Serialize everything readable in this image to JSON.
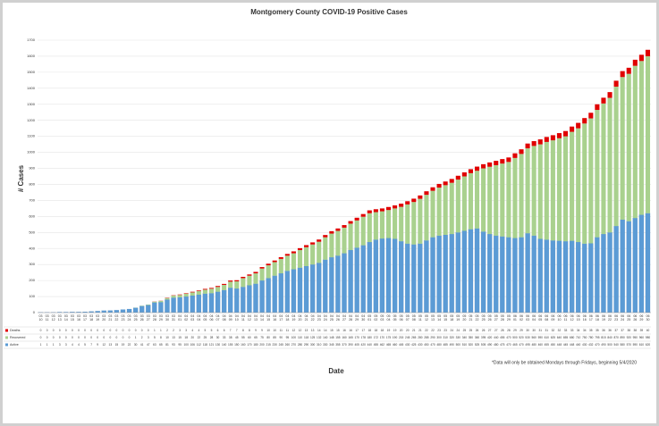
{
  "chart_data": {
    "type": "bar",
    "stacked": true,
    "title": "Montgomery County COVID-19 Positive Cases",
    "y_label": "# Cases",
    "x_label": "Date",
    "note": "*Data will only be obtained Mondays through Fridays, beginning 5/4/2020",
    "categories": [
      "03 10",
      "03 11",
      "03 12",
      "03 13",
      "03 14",
      "03 15",
      "03 16",
      "03 17",
      "03 18",
      "03 19",
      "03 20",
      "03 21",
      "03 22",
      "03 23",
      "03 24",
      "03 25",
      "03 26",
      "03 27",
      "03 28",
      "03 29",
      "03 30",
      "03 31",
      "04 01",
      "04 02",
      "04 03",
      "04 04",
      "04 05",
      "04 06",
      "04 07",
      "04 08",
      "04 09",
      "04 10",
      "04 11",
      "04 12",
      "04 13",
      "04 14",
      "04 15",
      "04 16",
      "04 17",
      "04 18",
      "04 19",
      "04 20",
      "04 21",
      "04 22",
      "04 23",
      "04 24",
      "04 25",
      "04 26",
      "04 27",
      "04 28",
      "04 29",
      "04 30",
      "05 01",
      "05 02",
      "05 03",
      "05 04",
      "05 05",
      "05 06",
      "05 07",
      "05 08",
      "05 11",
      "05 12",
      "05 13",
      "05 14",
      "05 15",
      "05 18",
      "05 19",
      "05 20",
      "05 21",
      "05 22",
      "05 25",
      "05 26",
      "05 27",
      "05 28",
      "05 29",
      "06 01",
      "06 02",
      "06 03",
      "06 04",
      "06 05",
      "06 08",
      "06 09",
      "06 10",
      "06 11",
      "06 12",
      "06 15",
      "06 16",
      "06 17",
      "06 18",
      "06 19",
      "06 22",
      "06 23",
      "06 24",
      "06 25",
      "06 26",
      "06 29",
      "06 30"
    ],
    "series": [
      {
        "name": "Active",
        "color": "#5b9bd5",
        "values": [
          1,
          1,
          1,
          3,
          3,
          4,
          4,
          5,
          7,
          9,
          12,
          13,
          15,
          19,
          22,
          30,
          41,
          47,
          63,
          65,
          81,
          93,
          95,
          100,
          106,
          112,
          118,
          121,
          130,
          140,
          155,
          150,
          160,
          170,
          180,
          200,
          215,
          230,
          245,
          260,
          270,
          280,
          290,
          300,
          310,
          330,
          345,
          355,
          370,
          390,
          405,
          420,
          440,
          455,
          462,
          465,
          460,
          445,
          430,
          425,
          430,
          450,
          470,
          480,
          485,
          490,
          500,
          510,
          520,
          525,
          505,
          490,
          480,
          475,
          470,
          465,
          470,
          495,
          480,
          460,
          455,
          450,
          448,
          445,
          448,
          440,
          430,
          432,
          470,
          490,
          500,
          540,
          580,
          570,
          590,
          610,
          620
        ]
      },
      {
        "name": "Recovered",
        "color": "#a9d18e",
        "values": [
          0,
          0,
          0,
          0,
          0,
          0,
          0,
          0,
          0,
          0,
          0,
          0,
          0,
          0,
          0,
          1,
          2,
          3,
          5,
          8,
          10,
          13,
          15,
          18,
          20,
          22,
          25,
          28,
          30,
          33,
          38,
          45,
          55,
          60,
          65,
          75,
          80,
          85,
          90,
          95,
          100,
          110,
          118,
          125,
          132,
          140,
          148,
          155,
          160,
          165,
          170,
          178,
          180,
          172,
          170,
          175,
          190,
          215,
          245,
          265,
          280,
          285,
          290,
          300,
          310,
          320,
          330,
          340,
          350,
          360,
          395,
          420,
          440,
          455,
          470,
          500,
          520,
          530,
          560,
          590,
          610,
          625,
          640,
          655,
          680,
          710,
          750,
          780,
          795,
          815,
          840,
          870,
          890,
          920,
          950,
          960,
          980
        ]
      },
      {
        "name": "Deaths",
        "color": "#e00000",
        "values": [
          0,
          0,
          0,
          0,
          0,
          0,
          0,
          0,
          0,
          0,
          0,
          0,
          0,
          0,
          0,
          0,
          0,
          0,
          1,
          1,
          2,
          2,
          3,
          3,
          4,
          4,
          5,
          5,
          6,
          6,
          7,
          7,
          8,
          8,
          9,
          9,
          10,
          10,
          11,
          11,
          12,
          12,
          13,
          13,
          14,
          14,
          15,
          15,
          16,
          16,
          17,
          17,
          18,
          18,
          18,
          19,
          19,
          20,
          20,
          21,
          21,
          22,
          22,
          23,
          23,
          24,
          24,
          25,
          25,
          26,
          26,
          27,
          27,
          28,
          28,
          29,
          29,
          30,
          30,
          31,
          31,
          32,
          32,
          33,
          33,
          34,
          34,
          35,
          35,
          36,
          36,
          37,
          37,
          38,
          38,
          39,
          40
        ]
      }
    ],
    "ylim": [
      0,
      1700
    ],
    "yticks": [
      0,
      100,
      200,
      300,
      400,
      500,
      600,
      700,
      800,
      900,
      1000,
      1100,
      1200,
      1300,
      1400,
      1500,
      1600,
      1700
    ],
    "grid": true
  }
}
